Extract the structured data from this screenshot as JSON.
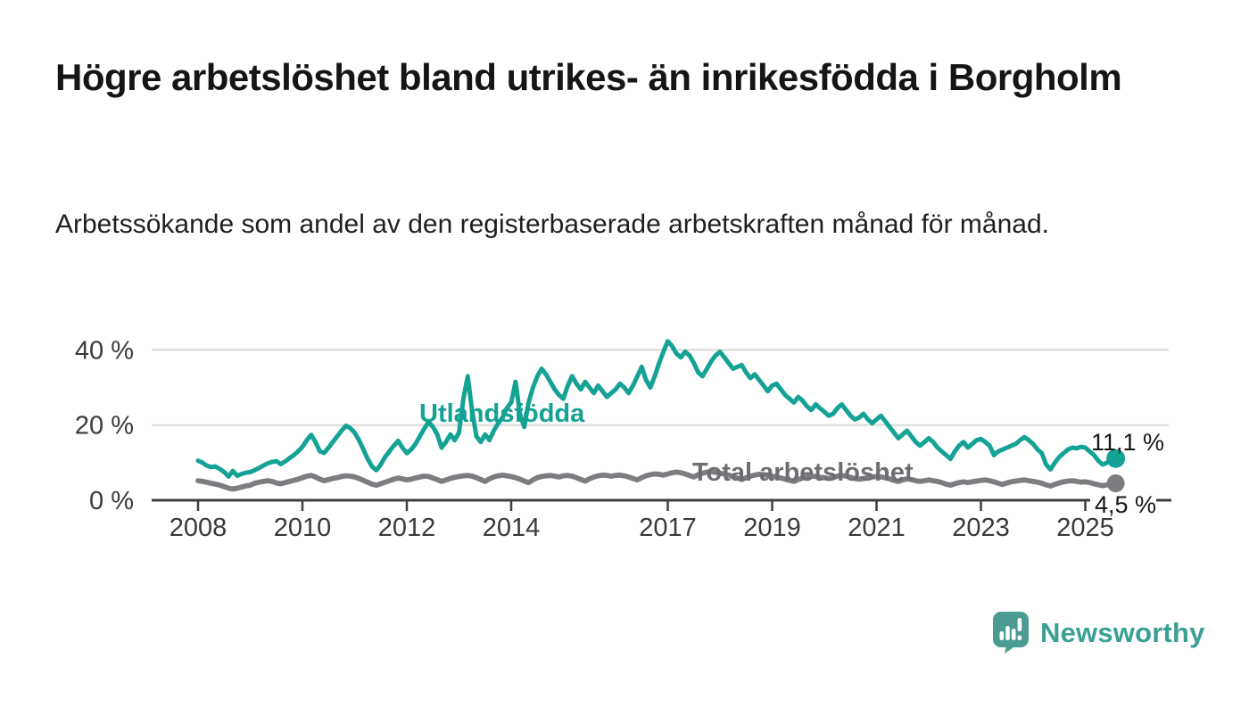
{
  "header": {
    "title": "Högre arbetslöshet bland utrikes- än inrikesfödda i Borgholm",
    "subtitle": "Arbetssökande som andel av den registerbaserade arbetskraften månad för månad."
  },
  "branding": {
    "name": "Newsworthy",
    "icon": "speech-bubble-bar-chart-icon",
    "icon_color": "#4a9c93",
    "text_color": "#3ba094"
  },
  "chart_data": {
    "type": "line",
    "frequency": "monthly",
    "x_start": "2008-01",
    "x_end": "2025-08",
    "ylim": [
      0,
      44
    ],
    "grid": "horizontal",
    "y_tick_values": [
      0,
      20,
      40
    ],
    "y_tick_labels": [
      "0 %",
      "20 %",
      "40 %"
    ],
    "x_tick_years": [
      2008,
      2010,
      2012,
      2014,
      2017,
      2019,
      2021,
      2023,
      2025
    ],
    "x_tick_labels": [
      "2008",
      "2010",
      "2012",
      "2014",
      "2017",
      "2019",
      "2021",
      "2023",
      "2025"
    ],
    "colors": {
      "grid": "#d8d8d8",
      "axis": "#3f3f3f",
      "tick_text": "#3a3a3a"
    },
    "series": [
      {
        "name": "Utlandsfödda",
        "color": "#14a295",
        "end_label": "11,1 %",
        "end_value": 11.1,
        "values": [
          10.5,
          10.0,
          9.2,
          8.8,
          9.0,
          8.3,
          7.5,
          6.3,
          7.8,
          6.5,
          7.0,
          7.3,
          7.5,
          8.0,
          8.6,
          9.2,
          9.8,
          10.2,
          10.4,
          9.6,
          10.3,
          11.2,
          12.0,
          13.0,
          14.2,
          16.0,
          17.4,
          15.5,
          13.0,
          12.6,
          14.0,
          15.5,
          17.0,
          18.5,
          19.8,
          19.2,
          18.0,
          16.0,
          13.5,
          11.0,
          9.0,
          8.0,
          9.5,
          11.5,
          13.0,
          14.5,
          15.8,
          14.0,
          12.5,
          13.5,
          15.0,
          17.0,
          19.0,
          20.8,
          19.5,
          17.5,
          14.0,
          15.5,
          17.5,
          16.0,
          18.0,
          27.0,
          33.0,
          24.0,
          17.0,
          15.5,
          17.5,
          16.0,
          18.5,
          20.5,
          22.0,
          24.5,
          26.0,
          31.5,
          23.0,
          19.5,
          26.0,
          30.0,
          33.0,
          35.0,
          33.5,
          31.5,
          29.5,
          28.0,
          27.0,
          30.5,
          33.0,
          31.0,
          29.5,
          31.5,
          30.0,
          28.5,
          30.5,
          29.0,
          27.5,
          28.5,
          29.5,
          31.0,
          30.0,
          28.5,
          30.5,
          33.0,
          35.5,
          32.0,
          30.0,
          33.0,
          36.5,
          39.5,
          42.3,
          41.0,
          39.0,
          38.0,
          39.5,
          38.5,
          36.5,
          34.0,
          33.0,
          35.0,
          37.0,
          38.5,
          39.5,
          38.0,
          36.5,
          35.0,
          35.5,
          36.0,
          34.0,
          32.5,
          33.5,
          32.0,
          30.5,
          29.0,
          30.5,
          31.0,
          29.5,
          28.0,
          27.0,
          26.0,
          27.5,
          26.5,
          25.0,
          24.0,
          25.5,
          24.5,
          23.5,
          22.5,
          23.0,
          24.5,
          25.5,
          24.0,
          22.5,
          21.5,
          22.0,
          23.0,
          21.5,
          20.5,
          21.5,
          22.5,
          21.0,
          19.5,
          18.0,
          16.5,
          17.5,
          18.5,
          17.0,
          15.5,
          14.5,
          15.5,
          16.5,
          15.5,
          14.0,
          13.0,
          12.0,
          11.0,
          13.0,
          14.5,
          15.5,
          14.0,
          15.0,
          16.0,
          16.3,
          15.5,
          14.5,
          12.0,
          13.0,
          13.5,
          14.0,
          14.5,
          15.0,
          16.0,
          16.8,
          16.0,
          15.0,
          13.5,
          12.5,
          9.5,
          8.2,
          10.0,
          11.5,
          12.5,
          13.5,
          14.0,
          13.8,
          14.2,
          14.0,
          13.0,
          12.0,
          10.5,
          9.5,
          10.0,
          10.5,
          11.1
        ]
      },
      {
        "name": "Total arbetslöshet",
        "color": "#7d7d81",
        "end_label": "4,5 %",
        "end_value": 4.5,
        "values": [
          5.2,
          5.0,
          4.8,
          4.5,
          4.3,
          4.0,
          3.6,
          3.2,
          3.0,
          3.2,
          3.5,
          3.8,
          4.0,
          4.5,
          4.8,
          5.0,
          5.2,
          5.0,
          4.6,
          4.4,
          4.7,
          5.0,
          5.3,
          5.6,
          6.0,
          6.4,
          6.6,
          6.2,
          5.6,
          5.2,
          5.5,
          5.8,
          6.0,
          6.3,
          6.5,
          6.4,
          6.2,
          5.8,
          5.3,
          4.8,
          4.3,
          4.0,
          4.4,
          4.8,
          5.2,
          5.6,
          5.9,
          5.7,
          5.4,
          5.6,
          5.9,
          6.2,
          6.4,
          6.3,
          5.9,
          5.5,
          5.0,
          5.4,
          5.8,
          6.1,
          6.3,
          6.5,
          6.6,
          6.4,
          6.0,
          5.5,
          5.0,
          5.7,
          6.2,
          6.5,
          6.7,
          6.5,
          6.3,
          6.0,
          5.6,
          5.1,
          4.7,
          5.4,
          6.0,
          6.3,
          6.5,
          6.6,
          6.4,
          6.2,
          6.5,
          6.6,
          6.4,
          6.0,
          5.5,
          5.1,
          5.7,
          6.2,
          6.5,
          6.7,
          6.6,
          6.4,
          6.6,
          6.7,
          6.5,
          6.2,
          5.8,
          5.4,
          6.0,
          6.5,
          6.8,
          7.0,
          6.9,
          6.7,
          7.0,
          7.3,
          7.5,
          7.3,
          7.0,
          6.6,
          6.2,
          6.8,
          7.2,
          7.5,
          7.6,
          7.4,
          7.2,
          7.0,
          6.7,
          6.3,
          5.9,
          5.5,
          6.0,
          6.4,
          6.7,
          6.9,
          6.8,
          6.6,
          6.4,
          6.2,
          5.9,
          5.6,
          5.3,
          5.0,
          5.5,
          5.9,
          6.2,
          6.4,
          6.3,
          6.1,
          6.0,
          5.8,
          6.0,
          6.4,
          6.6,
          6.4,
          6.1,
          5.8,
          5.6,
          5.8,
          6.0,
          6.2,
          6.3,
          6.2,
          6.0,
          5.7,
          5.3,
          5.0,
          5.4,
          5.7,
          5.5,
          5.2,
          5.0,
          5.2,
          5.4,
          5.2,
          5.0,
          4.7,
          4.3,
          4.0,
          4.4,
          4.7,
          4.9,
          4.7,
          4.9,
          5.1,
          5.3,
          5.4,
          5.2,
          4.9,
          4.5,
          4.2,
          4.6,
          4.9,
          5.1,
          5.3,
          5.4,
          5.2,
          5.0,
          4.8,
          4.5,
          4.1,
          3.8,
          4.2,
          4.6,
          4.9,
          5.1,
          5.2,
          5.0,
          4.8,
          4.9,
          4.7,
          4.4,
          4.1,
          3.9,
          4.1,
          4.3,
          4.5
        ]
      }
    ]
  }
}
